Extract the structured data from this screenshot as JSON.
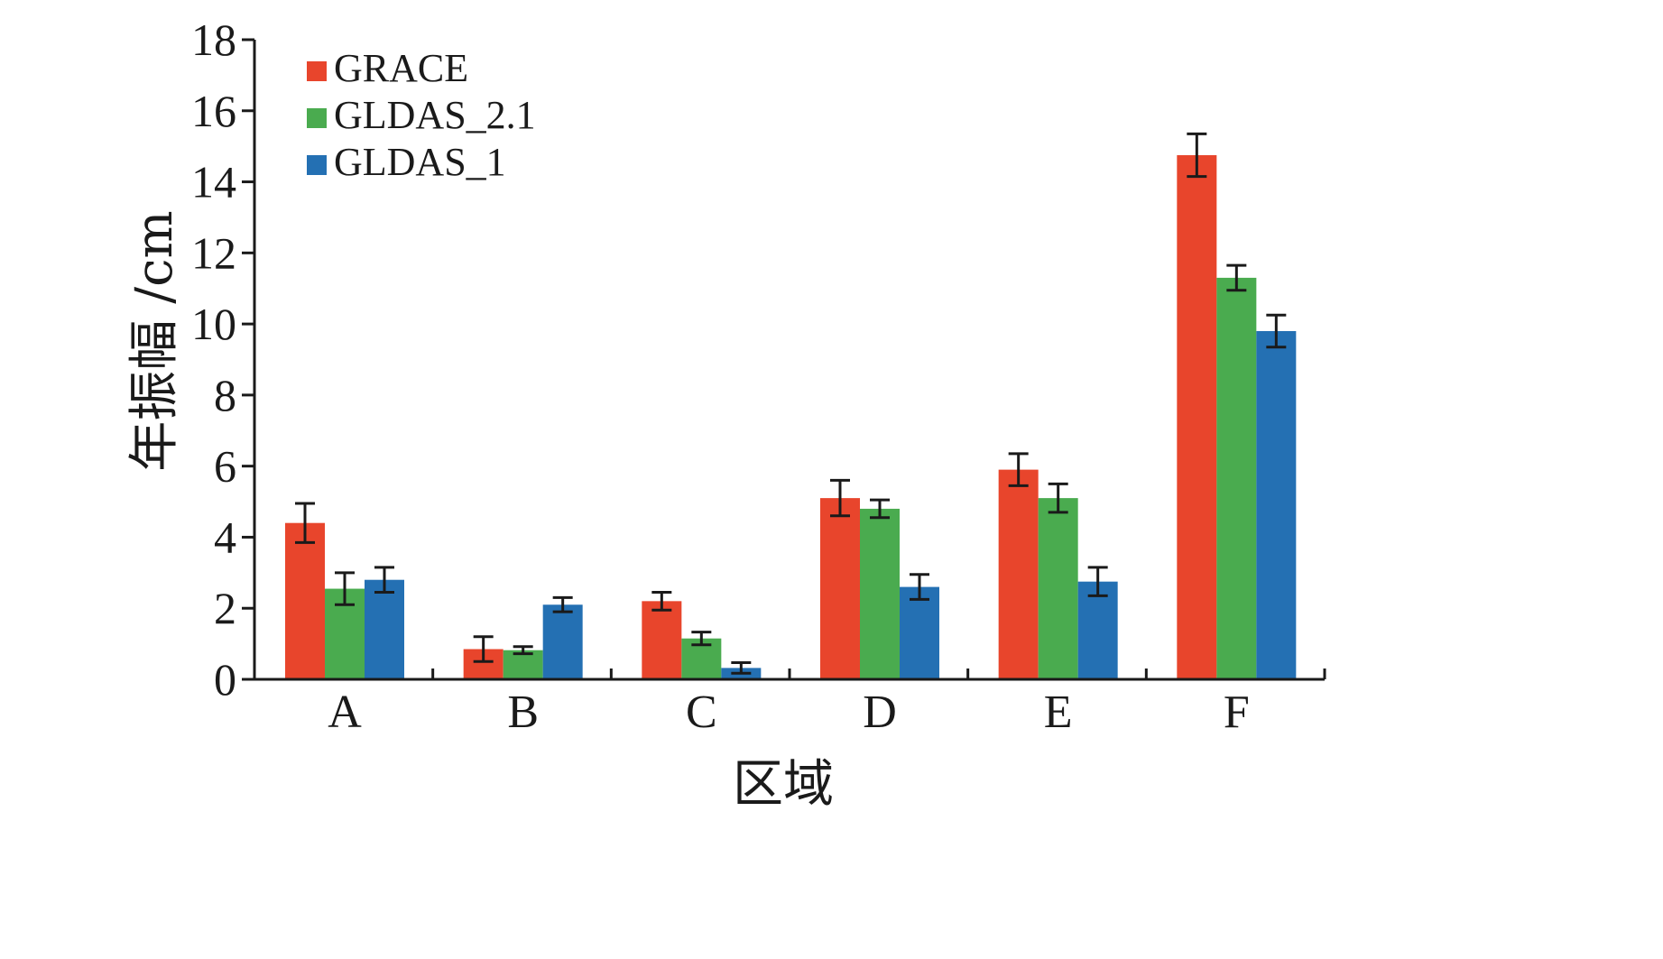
{
  "chart_data": {
    "type": "bar",
    "xlabel": "区域",
    "ylabel": "年振幅 /cm",
    "ylim": [
      0,
      18
    ],
    "yticks": [
      0,
      2,
      4,
      6,
      8,
      10,
      12,
      14,
      16,
      18
    ],
    "categories": [
      "A",
      "B",
      "C",
      "D",
      "E",
      "F"
    ],
    "legend_position": "top-left",
    "grid": false,
    "series": [
      {
        "name": "GRACE",
        "color": "#e8452c",
        "values": [
          4.4,
          0.85,
          2.2,
          5.1,
          5.9,
          14.75
        ],
        "errors": [
          0.55,
          0.35,
          0.25,
          0.5,
          0.45,
          0.6
        ]
      },
      {
        "name": "GLDAS_2.1",
        "color": "#4aab4f",
        "values": [
          2.55,
          0.82,
          1.15,
          4.8,
          5.1,
          11.3
        ],
        "errors": [
          0.45,
          0.1,
          0.18,
          0.25,
          0.4,
          0.35
        ]
      },
      {
        "name": "GLDAS_1",
        "color": "#2470b3",
        "values": [
          2.8,
          2.1,
          0.32,
          2.6,
          2.75,
          9.8
        ],
        "errors": [
          0.35,
          0.2,
          0.15,
          0.35,
          0.4,
          0.45
        ]
      }
    ]
  }
}
